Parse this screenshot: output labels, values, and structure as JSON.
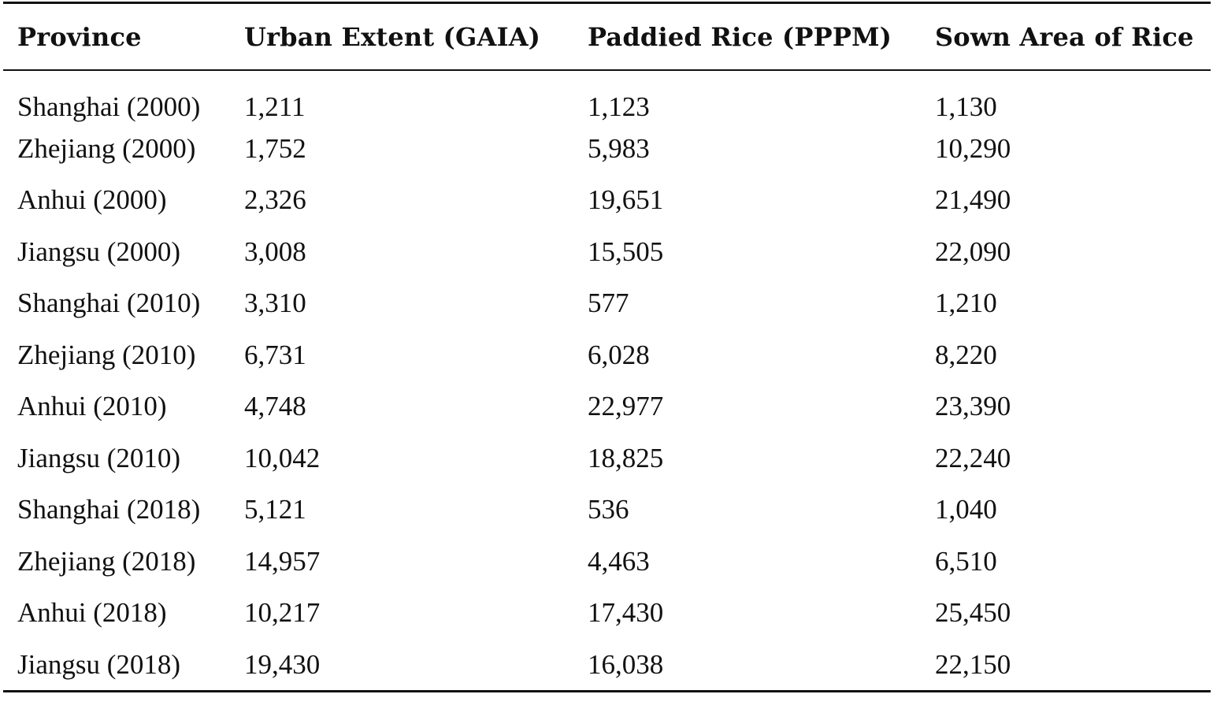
{
  "table": {
    "headers": [
      "Province",
      "Urban Extent (GAIA)",
      "Paddied Rice (PPPM)",
      "Sown Area of Rice"
    ],
    "rows": [
      [
        "Shanghai (2000)",
        "1,211",
        "1,123",
        "1,130"
      ],
      [
        "Zhejiang (2000)",
        "1,752",
        "5,983",
        "10,290"
      ],
      [
        "Anhui (2000)",
        "2,326",
        "19,651",
        "21,490"
      ],
      [
        "Jiangsu (2000)",
        "3,008",
        "15,505",
        "22,090"
      ],
      [
        "Shanghai (2010)",
        "3,310",
        "577",
        "1,210"
      ],
      [
        "Zhejiang (2010)",
        "6,731",
        "6,028",
        "8,220"
      ],
      [
        "Anhui (2010)",
        "4,748",
        "22,977",
        "23,390"
      ],
      [
        "Jiangsu (2010)",
        "10,042",
        "18,825",
        "22,240"
      ],
      [
        "Shanghai (2018)",
        "5,121",
        "536",
        "1,040"
      ],
      [
        "Zhejiang (2018)",
        "14,957",
        "4,463",
        "6,510"
      ],
      [
        "Anhui (2018)",
        "10,217",
        "17,430",
        "25,450"
      ],
      [
        "Jiangsu (2018)",
        "19,430",
        "16,038",
        "22,150"
      ]
    ]
  }
}
